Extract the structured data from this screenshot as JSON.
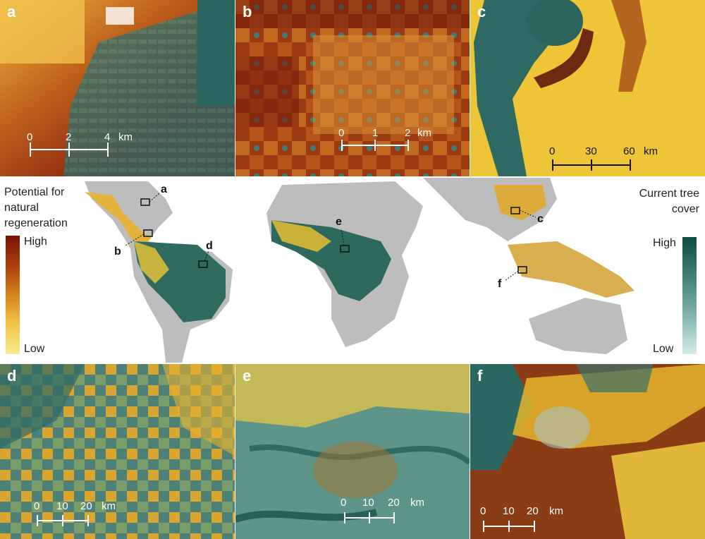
{
  "panels": {
    "a": {
      "label": "a",
      "scalebar": [
        "0",
        "2",
        "4",
        "km"
      ]
    },
    "b": {
      "label": "b",
      "scalebar": [
        "0",
        "1",
        "2",
        "km"
      ]
    },
    "c": {
      "label": "c",
      "scalebar": [
        "0",
        "30",
        "60",
        "km"
      ]
    },
    "d": {
      "label": "d",
      "scalebar": [
        "0",
        "10",
        "20",
        "km"
      ]
    },
    "e": {
      "label": "e",
      "scalebar": [
        "0",
        "10",
        "20",
        "km"
      ]
    },
    "f": {
      "label": "f",
      "scalebar": [
        "0",
        "10",
        "20",
        "km"
      ]
    }
  },
  "legend_left": {
    "title": [
      "Potential for",
      "natural",
      "regeneration"
    ],
    "high": "High",
    "low": "Low",
    "colors": [
      "#7a1208",
      "#a8400e",
      "#d6851c",
      "#f1c548",
      "#f8ec8a"
    ]
  },
  "legend_right": {
    "title": [
      "Current tree",
      "cover"
    ],
    "high": "High",
    "low": "Low",
    "colors": [
      "#0f4a44",
      "#3f7f77",
      "#82b3ad",
      "#d5ecea"
    ]
  },
  "map_markers": [
    "a",
    "b",
    "c",
    "d",
    "e",
    "f"
  ]
}
